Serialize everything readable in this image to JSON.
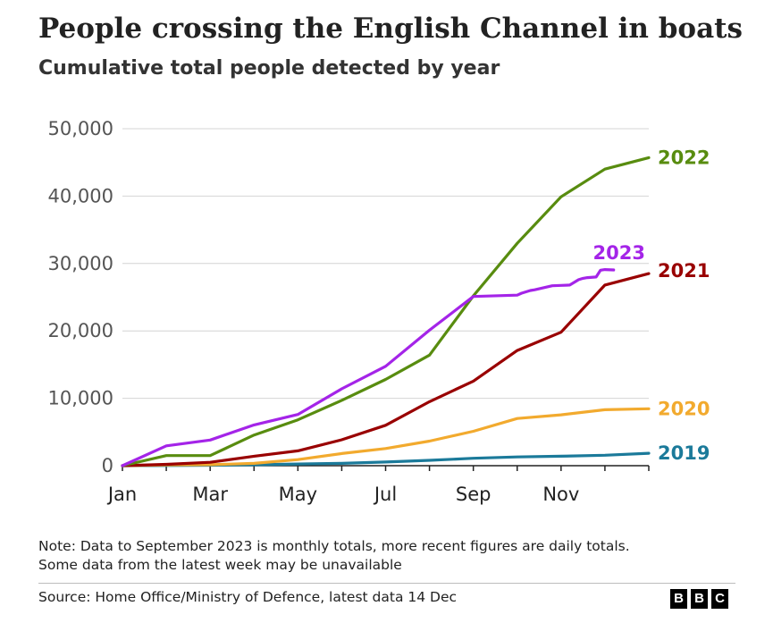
{
  "header": {
    "title": "People crossing the English Channel in boats",
    "subtitle": "Cumulative total people detected by year"
  },
  "footer": {
    "note_line1": "Note: Data to September 2023 is monthly totals, more recent figures are daily totals.",
    "note_line2": "Some data from the latest week may be unavailable",
    "source": "Source: Home Office/Ministry of Defence, latest data 14 Dec",
    "logo_letters": [
      "B",
      "B",
      "C"
    ]
  },
  "chart_data": {
    "type": "line",
    "title": "People crossing the English Channel in boats",
    "subtitle": "Cumulative total people detected by year",
    "xlabel": "",
    "ylabel": "",
    "x_range": [
      1,
      13
    ],
    "ylim": [
      0,
      50000
    ],
    "grid": true,
    "legend": "direct labels at line ends",
    "x_ticks": [
      {
        "x": 1,
        "label": "Jan"
      },
      {
        "x": 3,
        "label": "Mar"
      },
      {
        "x": 5,
        "label": "May"
      },
      {
        "x": 7,
        "label": "Jul"
      },
      {
        "x": 9,
        "label": "Sep"
      },
      {
        "x": 11,
        "label": "Nov"
      }
    ],
    "y_ticks": [
      {
        "y": 0,
        "label": "0"
      },
      {
        "y": 10000,
        "label": "10,000"
      },
      {
        "y": 20000,
        "label": "20,000"
      },
      {
        "y": 30000,
        "label": "30,000"
      },
      {
        "y": 40000,
        "label": "40,000"
      },
      {
        "y": 50000,
        "label": "50,000"
      }
    ],
    "series": [
      {
        "name": "2019",
        "color": "#1b7a9a",
        "x": [
          1,
          2,
          3,
          4,
          5,
          6,
          7,
          8,
          9,
          10,
          11,
          12,
          13
        ],
        "y": [
          0,
          30,
          70,
          130,
          250,
          350,
          550,
          800,
          1100,
          1300,
          1400,
          1550,
          1850
        ]
      },
      {
        "name": "2020",
        "color": "#f2aa2e",
        "x": [
          1,
          2,
          3,
          4,
          5,
          6,
          7,
          8,
          9,
          10,
          11,
          12,
          13
        ],
        "y": [
          0,
          100,
          150,
          350,
          900,
          1800,
          2550,
          3650,
          5100,
          7000,
          7550,
          8300,
          8450
        ]
      },
      {
        "name": "2021",
        "color": "#990000",
        "x": [
          1,
          2,
          3,
          4,
          5,
          6,
          7,
          8,
          9,
          10,
          11,
          12,
          13
        ],
        "y": [
          0,
          200,
          500,
          1400,
          2200,
          3850,
          6000,
          9500,
          12550,
          17100,
          19800,
          26800,
          28500
        ]
      },
      {
        "name": "2022",
        "color": "#588c0f",
        "x": [
          1,
          2,
          3,
          4,
          5,
          6,
          7,
          8,
          9,
          10,
          11,
          12,
          13
        ],
        "y": [
          0,
          1500,
          1500,
          4550,
          6800,
          9700,
          12800,
          16400,
          25200,
          33000,
          39900,
          44000,
          45700
        ]
      },
      {
        "name": "2023",
        "color": "#a424e8",
        "x": [
          1,
          2,
          3,
          4,
          5,
          6,
          7,
          8,
          9,
          10,
          10.1,
          10.3,
          10.4,
          10.6,
          10.8,
          11.0,
          11.2,
          11.4,
          11.5,
          11.6,
          11.8,
          11.9,
          12.0,
          12.2
        ],
        "y": [
          0,
          2950,
          3800,
          6050,
          7600,
          11400,
          14750,
          20100,
          25100,
          25300,
          25600,
          26000,
          26100,
          26400,
          26700,
          26750,
          26800,
          27600,
          27800,
          27900,
          28000,
          29000,
          29100,
          29050
        ]
      }
    ]
  }
}
